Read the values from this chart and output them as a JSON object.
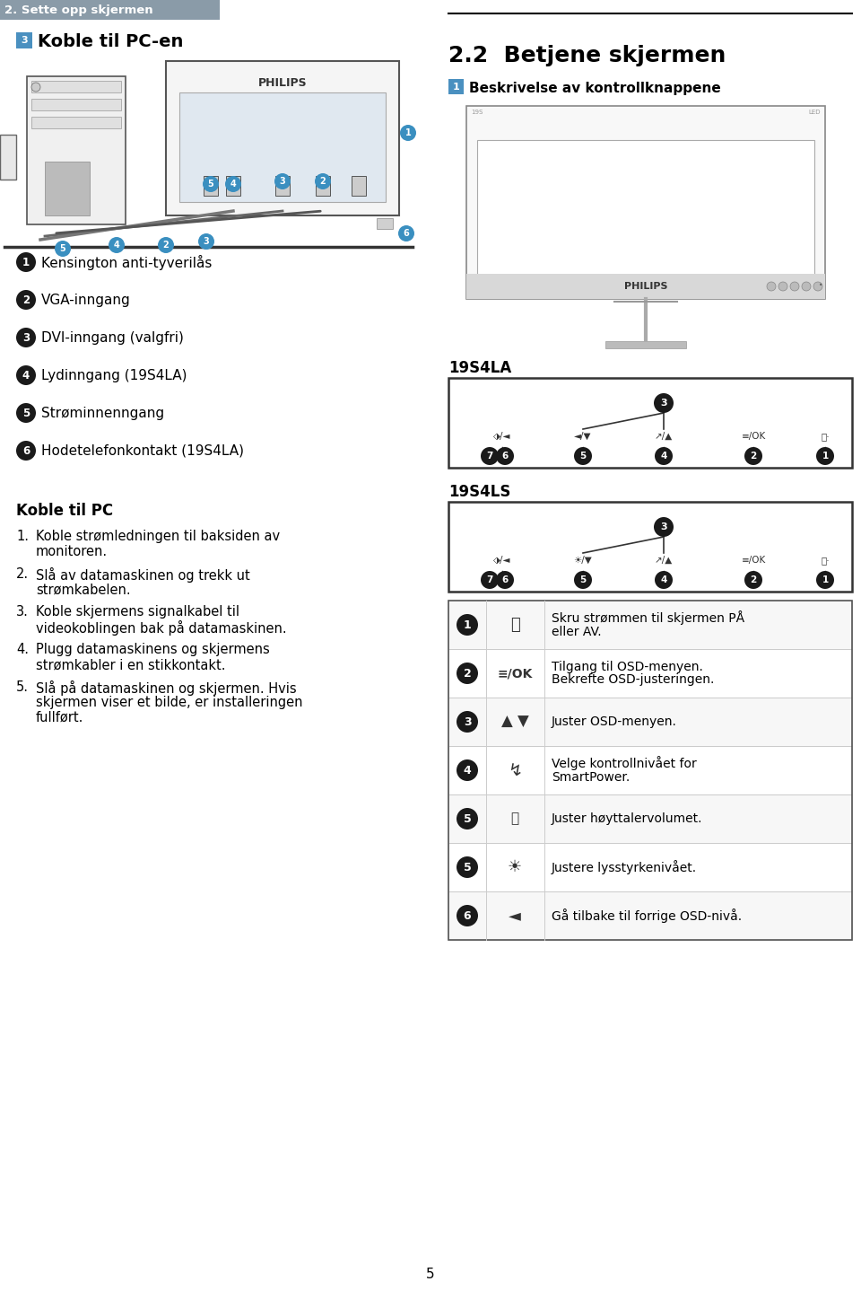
{
  "page_bg": "#ffffff",
  "header_bg": "#8a9ba8",
  "header_text": "2. Sette opp skjermen",
  "section3_title": "Koble til PC-en",
  "section22_title": "2.2  Betjene skjermen",
  "section1_title": "Beskrivelse av kontrollknappene",
  "numbered_items": [
    {
      "num": "1",
      "text": "Kensington anti-tyverilås"
    },
    {
      "num": "2",
      "text": "VGA-inngang"
    },
    {
      "num": "3",
      "text": "DVI-inngang (valgfri)"
    },
    {
      "num": "4",
      "text": "Lydinngang (19S4LA)"
    },
    {
      "num": "5",
      "text": "Strøminnenngang"
    },
    {
      "num": "6",
      "text": "Hodetelefonkontakt (19S4LA)"
    }
  ],
  "koble_title": "Koble til PC",
  "koble_steps": [
    "Koble strømledningen til baksiden av\nmonitoren.",
    "Slå av datamaskinen og trekk ut\nstrømkabelen.",
    "Koble skjermens signalkabel til\nvideokoblingen bak på datamaskinen.",
    "Plugg datamaskinens og skjermens\nstrømkabler i en stikkontakt.",
    "Slå på datamaskinen og skjermen. Hvis\nskjermen viser et bilde, er installeringen\nfullført."
  ],
  "model1": "19S4LA",
  "model2": "19S4LS",
  "diag1_buttons": [
    "⬗/◄",
    "◄/▼",
    "↗/▲",
    "≡/OK",
    "⏻ ·"
  ],
  "diag2_buttons": [
    "⬗/◄",
    "☀/▼",
    "↗/▲",
    "≡/OK",
    "⏻ ·"
  ],
  "table_rows": [
    {
      "num": "1",
      "icon": "⏻",
      "text": "Skru strømmen til skjermen PÅ\neller AV."
    },
    {
      "num": "2",
      "icon": "≡/OK",
      "text": "Tilgang til OSD-menyen.\nBekrefte OSD-justeringen."
    },
    {
      "num": "3",
      "icon": "▲▼",
      "text": "Juster OSD-menyen."
    },
    {
      "num": "4",
      "icon": "↯",
      "text": "Velge kontrollnivået for\nSmartPower."
    },
    {
      "num": "5",
      "icon": "🔉",
      "text": "Juster høyttalervolumet."
    },
    {
      "num": "5",
      "icon": "★",
      "text": "Justere lysstyrkenivået."
    },
    {
      "num": "6",
      "icon": "◄",
      "text": "Gå tilbake til forrige OSD-nivå."
    }
  ],
  "page_number": "5"
}
